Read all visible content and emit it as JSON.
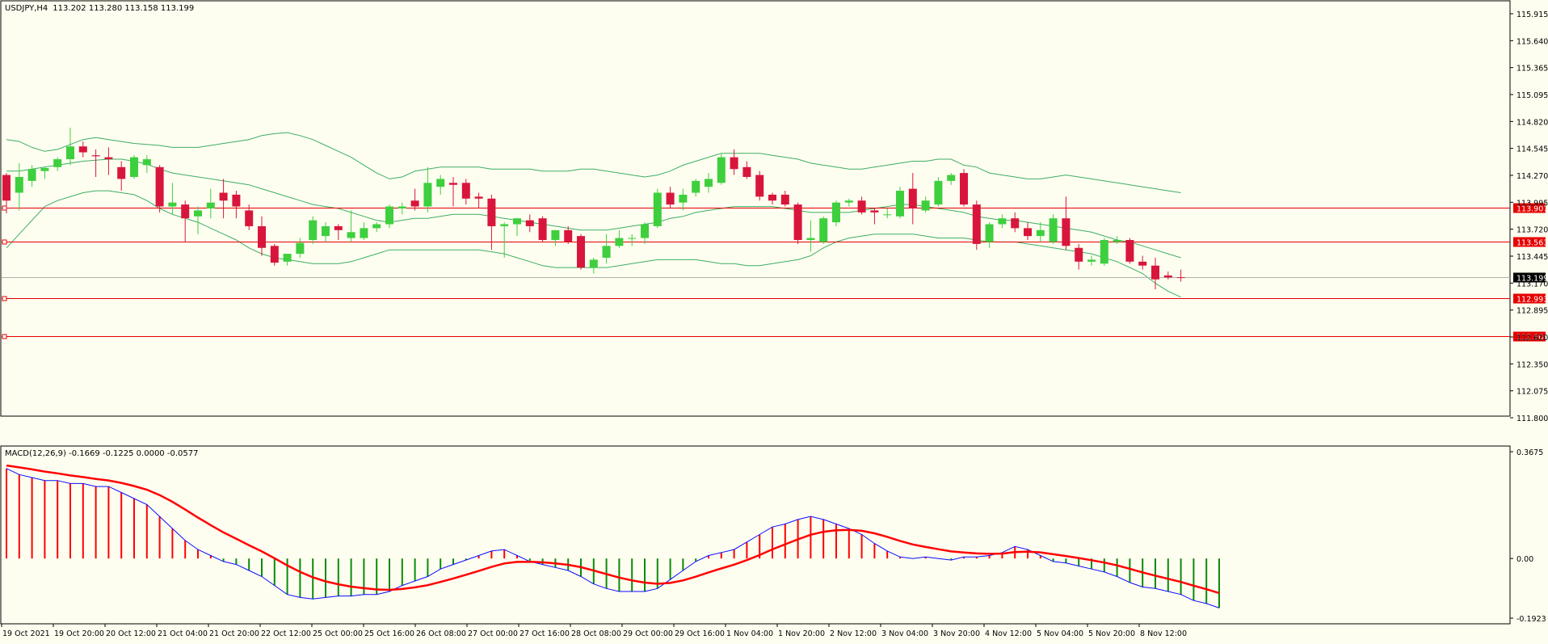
{
  "window": {
    "symbol_label": "USDJPY,H4",
    "ohlc": "113.202 113.280 113.158 113.199"
  },
  "colors": {
    "background": "#fefef0",
    "bull": "#3ecf3e",
    "bear": "#d8163c",
    "band": "#3dae64",
    "hline": "#e60000",
    "macd_main": "#0b0bff",
    "macd_signal": "#ff0000",
    "hist_pos": "#ff0000",
    "hist_neg": "#0a8a0a",
    "bid": "#b0b0b0"
  },
  "price_levels": [
    113.907,
    113.563,
    112.993,
    112.604
  ],
  "current_price": 113.199,
  "chart_data": [
    {
      "type": "candlestick",
      "title": "USDJPY,H4",
      "ylim": [
        111.8,
        116.0
      ],
      "ytick_labels": [
        "115.915",
        "115.640",
        "115.365",
        "115.095",
        "114.820",
        "114.545",
        "114.270",
        "113.995",
        "113.720",
        "113.445",
        "113.170",
        "112.895",
        "112.620",
        "112.350",
        "112.075",
        "111.800"
      ],
      "xtick_labels": [
        "19 Oct 2021",
        "19 Oct 20:00",
        "20 Oct 12:00",
        "21 Oct 04:00",
        "21 Oct 20:00",
        "22 Oct 12:00",
        "25 Oct 00:00",
        "25 Oct 16:00",
        "26 Oct 08:00",
        "27 Oct 00:00",
        "27 Oct 16:00",
        "28 Oct 08:00",
        "29 Oct 00:00",
        "29 Oct 16:00",
        "1 Nov 04:00",
        "1 Nov 20:00",
        "2 Nov 12:00",
        "3 Nov 04:00",
        "3 Nov 20:00",
        "4 Nov 12:00",
        "5 Nov 04:00",
        "5 Nov 20:00",
        "8 Nov 12:00"
      ],
      "candles": [
        {
          "o": 114.24,
          "h": 114.26,
          "c": 113.98,
          "l": 113.85
        },
        {
          "o": 114.06,
          "h": 114.36,
          "c": 114.22,
          "l": 113.88
        },
        {
          "o": 114.18,
          "h": 114.34,
          "c": 114.3,
          "l": 114.12
        },
        {
          "o": 114.28,
          "h": 114.32,
          "c": 114.31,
          "l": 114.2
        },
        {
          "o": 114.32,
          "h": 114.42,
          "c": 114.4,
          "l": 114.28
        },
        {
          "o": 114.4,
          "h": 114.72,
          "c": 114.53,
          "l": 114.34
        },
        {
          "o": 114.53,
          "h": 114.58,
          "c": 114.47,
          "l": 114.42
        },
        {
          "o": 114.44,
          "h": 114.5,
          "c": 114.43,
          "l": 114.22
        },
        {
          "o": 114.42,
          "h": 114.52,
          "c": 114.4,
          "l": 114.24
        },
        {
          "o": 114.32,
          "h": 114.38,
          "c": 114.2,
          "l": 114.08
        },
        {
          "o": 114.22,
          "h": 114.44,
          "c": 114.42,
          "l": 114.2
        },
        {
          "o": 114.34,
          "h": 114.44,
          "c": 114.4,
          "l": 114.26
        },
        {
          "o": 114.32,
          "h": 114.34,
          "c": 113.92,
          "l": 113.86
        },
        {
          "o": 113.92,
          "h": 114.16,
          "c": 113.96,
          "l": 113.84
        },
        {
          "o": 113.94,
          "h": 113.98,
          "c": 113.8,
          "l": 113.56
        },
        {
          "o": 113.82,
          "h": 113.92,
          "c": 113.88,
          "l": 113.64
        },
        {
          "o": 113.9,
          "h": 114.1,
          "c": 113.96,
          "l": 113.8
        },
        {
          "o": 114.06,
          "h": 114.2,
          "c": 113.98,
          "l": 113.8
        },
        {
          "o": 114.04,
          "h": 114.08,
          "c": 113.92,
          "l": 113.8
        },
        {
          "o": 113.88,
          "h": 113.94,
          "c": 113.72,
          "l": 113.68
        },
        {
          "o": 113.72,
          "h": 113.82,
          "c": 113.5,
          "l": 113.42
        },
        {
          "o": 113.52,
          "h": 113.54,
          "c": 113.35,
          "l": 113.32
        },
        {
          "o": 113.36,
          "h": 113.42,
          "c": 113.44,
          "l": 113.32
        },
        {
          "o": 113.44,
          "h": 113.6,
          "c": 113.55,
          "l": 113.4
        },
        {
          "o": 113.58,
          "h": 113.82,
          "c": 113.78,
          "l": 113.54
        },
        {
          "o": 113.62,
          "h": 113.76,
          "c": 113.72,
          "l": 113.56
        },
        {
          "o": 113.72,
          "h": 113.74,
          "c": 113.68,
          "l": 113.58
        },
        {
          "o": 113.6,
          "h": 113.88,
          "c": 113.66,
          "l": 113.56
        },
        {
          "o": 113.6,
          "h": 113.76,
          "c": 113.7,
          "l": 113.58
        },
        {
          "o": 113.7,
          "h": 113.76,
          "c": 113.74,
          "l": 113.66
        },
        {
          "o": 113.74,
          "h": 113.94,
          "c": 113.92,
          "l": 113.7
        },
        {
          "o": 113.9,
          "h": 113.96,
          "c": 113.92,
          "l": 113.84
        },
        {
          "o": 113.98,
          "h": 114.1,
          "c": 113.92,
          "l": 113.88
        },
        {
          "o": 113.92,
          "h": 114.32,
          "c": 114.16,
          "l": 113.86
        },
        {
          "o": 114.12,
          "h": 114.24,
          "c": 114.2,
          "l": 114.04
        },
        {
          "o": 114.16,
          "h": 114.22,
          "c": 114.14,
          "l": 113.92
        },
        {
          "o": 114.16,
          "h": 114.2,
          "c": 114.0,
          "l": 113.94
        },
        {
          "o": 114.02,
          "h": 114.06,
          "c": 114.0,
          "l": 113.9
        },
        {
          "o": 114.0,
          "h": 114.04,
          "c": 113.72,
          "l": 113.48
        },
        {
          "o": 113.72,
          "h": 113.76,
          "c": 113.74,
          "l": 113.4
        },
        {
          "o": 113.74,
          "h": 113.8,
          "c": 113.8,
          "l": 113.62
        },
        {
          "o": 113.78,
          "h": 113.84,
          "c": 113.72,
          "l": 113.66
        },
        {
          "o": 113.8,
          "h": 113.82,
          "c": 113.58,
          "l": 113.56
        },
        {
          "o": 113.58,
          "h": 113.68,
          "c": 113.68,
          "l": 113.52
        },
        {
          "o": 113.68,
          "h": 113.72,
          "c": 113.56,
          "l": 113.54
        },
        {
          "o": 113.62,
          "h": 113.64,
          "c": 113.3,
          "l": 113.28
        },
        {
          "o": 113.3,
          "h": 113.4,
          "c": 113.38,
          "l": 113.24
        },
        {
          "o": 113.4,
          "h": 113.64,
          "c": 113.52,
          "l": 113.34
        },
        {
          "o": 113.52,
          "h": 113.68,
          "c": 113.6,
          "l": 113.5
        },
        {
          "o": 113.6,
          "h": 113.64,
          "c": 113.6,
          "l": 113.52
        },
        {
          "o": 113.6,
          "h": 113.76,
          "c": 113.74,
          "l": 113.54
        },
        {
          "o": 113.72,
          "h": 114.1,
          "c": 114.06,
          "l": 113.7
        },
        {
          "o": 114.06,
          "h": 114.12,
          "c": 113.94,
          "l": 113.9
        },
        {
          "o": 113.96,
          "h": 114.1,
          "c": 114.04,
          "l": 113.88
        },
        {
          "o": 114.06,
          "h": 114.2,
          "c": 114.18,
          "l": 114.02
        },
        {
          "o": 114.12,
          "h": 114.26,
          "c": 114.2,
          "l": 114.06
        },
        {
          "o": 114.16,
          "h": 114.46,
          "c": 114.42,
          "l": 114.14
        },
        {
          "o": 114.42,
          "h": 114.5,
          "c": 114.3,
          "l": 114.24
        },
        {
          "o": 114.32,
          "h": 114.38,
          "c": 114.22,
          "l": 114.2
        },
        {
          "o": 114.24,
          "h": 114.28,
          "c": 114.02,
          "l": 113.98
        },
        {
          "o": 114.04,
          "h": 114.06,
          "c": 113.98,
          "l": 113.94
        },
        {
          "o": 114.04,
          "h": 114.08,
          "c": 113.94,
          "l": 113.92
        },
        {
          "o": 113.94,
          "h": 113.96,
          "c": 113.58,
          "l": 113.54
        },
        {
          "o": 113.58,
          "h": 113.78,
          "c": 113.6,
          "l": 113.46
        },
        {
          "o": 113.56,
          "h": 113.82,
          "c": 113.8,
          "l": 113.54
        },
        {
          "o": 113.76,
          "h": 113.98,
          "c": 113.96,
          "l": 113.72
        },
        {
          "o": 113.96,
          "h": 114.0,
          "c": 113.98,
          "l": 113.92
        },
        {
          "o": 113.98,
          "h": 114.02,
          "c": 113.86,
          "l": 113.84
        },
        {
          "o": 113.88,
          "h": 113.9,
          "c": 113.86,
          "l": 113.74
        },
        {
          "o": 113.84,
          "h": 113.9,
          "c": 113.84,
          "l": 113.8
        },
        {
          "o": 113.82,
          "h": 114.12,
          "c": 114.08,
          "l": 113.8
        },
        {
          "o": 114.1,
          "h": 114.26,
          "c": 113.9,
          "l": 113.74
        },
        {
          "o": 113.88,
          "h": 114.02,
          "c": 113.98,
          "l": 113.86
        },
        {
          "o": 113.94,
          "h": 114.22,
          "c": 114.18,
          "l": 113.92
        },
        {
          "o": 114.18,
          "h": 114.26,
          "c": 114.24,
          "l": 114.14
        },
        {
          "o": 114.26,
          "h": 114.3,
          "c": 113.94,
          "l": 113.92
        },
        {
          "o": 113.94,
          "h": 113.98,
          "c": 113.54,
          "l": 113.48
        },
        {
          "o": 113.56,
          "h": 113.76,
          "c": 113.74,
          "l": 113.5
        },
        {
          "o": 113.74,
          "h": 113.84,
          "c": 113.8,
          "l": 113.7
        },
        {
          "o": 113.8,
          "h": 113.86,
          "c": 113.7,
          "l": 113.66
        },
        {
          "o": 113.7,
          "h": 113.76,
          "c": 113.62,
          "l": 113.58
        },
        {
          "o": 113.62,
          "h": 113.76,
          "c": 113.68,
          "l": 113.56
        },
        {
          "o": 113.56,
          "h": 113.84,
          "c": 113.8,
          "l": 113.54
        },
        {
          "o": 113.8,
          "h": 114.02,
          "c": 113.52,
          "l": 113.48
        },
        {
          "o": 113.5,
          "h": 113.54,
          "c": 113.36,
          "l": 113.28
        },
        {
          "o": 113.36,
          "h": 113.42,
          "c": 113.38,
          "l": 113.32
        },
        {
          "o": 113.34,
          "h": 113.6,
          "c": 113.58,
          "l": 113.32
        },
        {
          "o": 113.56,
          "h": 113.62,
          "c": 113.58,
          "l": 113.54
        },
        {
          "o": 113.58,
          "h": 113.6,
          "c": 113.36,
          "l": 113.34
        },
        {
          "o": 113.36,
          "h": 113.42,
          "c": 113.32,
          "l": 113.28
        },
        {
          "o": 113.32,
          "h": 113.4,
          "c": 113.18,
          "l": 113.08
        },
        {
          "o": 113.22,
          "h": 113.26,
          "c": 113.2,
          "l": 113.18
        },
        {
          "o": 113.202,
          "h": 113.28,
          "c": 113.199,
          "l": 113.158
        }
      ],
      "bands": {
        "upper": [
          114.6,
          114.58,
          114.52,
          114.48,
          114.5,
          114.55,
          114.6,
          114.62,
          114.6,
          114.58,
          114.56,
          114.55,
          114.54,
          114.52,
          114.52,
          114.52,
          114.54,
          114.56,
          114.58,
          114.6,
          114.64,
          114.66,
          114.67,
          114.64,
          114.6,
          114.54,
          114.48,
          114.42,
          114.34,
          114.26,
          114.2,
          114.22,
          114.28,
          114.3,
          114.32,
          114.32,
          114.32,
          114.32,
          114.3,
          114.3,
          114.3,
          114.3,
          114.28,
          114.28,
          114.28,
          114.3,
          114.3,
          114.28,
          114.26,
          114.24,
          114.22,
          114.24,
          114.28,
          114.34,
          114.38,
          114.42,
          114.46,
          114.46,
          114.46,
          114.46,
          114.44,
          114.42,
          114.4,
          114.36,
          114.34,
          114.32,
          114.3,
          114.3,
          114.32,
          114.34,
          114.36,
          114.38,
          114.38,
          114.4,
          114.4,
          114.34,
          114.32,
          114.26,
          114.24,
          114.22,
          114.2,
          114.2,
          114.22,
          114.24,
          114.22,
          114.2,
          114.18,
          114.16,
          114.14,
          114.12,
          114.1,
          114.08,
          114.06
        ],
        "middle": [
          114.28,
          114.28,
          114.3,
          114.32,
          114.34,
          114.36,
          114.38,
          114.39,
          114.4,
          114.4,
          114.38,
          114.35,
          114.3,
          114.26,
          114.24,
          114.22,
          114.2,
          114.18,
          114.16,
          114.14,
          114.1,
          114.06,
          114.02,
          113.98,
          113.94,
          113.92,
          113.9,
          113.86,
          113.82,
          113.78,
          113.76,
          113.78,
          113.8,
          113.8,
          113.82,
          113.84,
          113.84,
          113.84,
          113.82,
          113.8,
          113.78,
          113.76,
          113.74,
          113.72,
          113.7,
          113.68,
          113.68,
          113.68,
          113.7,
          113.72,
          113.74,
          113.76,
          113.8,
          113.82,
          113.86,
          113.88,
          113.9,
          113.92,
          113.92,
          113.92,
          113.92,
          113.9,
          113.88,
          113.86,
          113.86,
          113.86,
          113.86,
          113.88,
          113.9,
          113.92,
          113.94,
          113.94,
          113.92,
          113.9,
          113.88,
          113.86,
          113.82,
          113.8,
          113.78,
          113.78,
          113.76,
          113.74,
          113.72,
          113.7,
          113.68,
          113.66,
          113.62,
          113.58,
          113.56,
          113.52,
          113.48,
          113.44,
          113.4
        ],
        "lower": [
          113.5,
          113.64,
          113.78,
          113.92,
          113.98,
          114.02,
          114.06,
          114.08,
          114.08,
          114.06,
          114.04,
          113.98,
          113.9,
          113.84,
          113.8,
          113.76,
          113.7,
          113.64,
          113.58,
          113.5,
          113.44,
          113.4,
          113.38,
          113.36,
          113.34,
          113.34,
          113.34,
          113.36,
          113.4,
          113.44,
          113.48,
          113.48,
          113.48,
          113.48,
          113.48,
          113.48,
          113.48,
          113.48,
          113.46,
          113.44,
          113.4,
          113.36,
          113.32,
          113.3,
          113.3,
          113.3,
          113.3,
          113.3,
          113.32,
          113.34,
          113.36,
          113.38,
          113.38,
          113.38,
          113.38,
          113.36,
          113.34,
          113.34,
          113.32,
          113.32,
          113.34,
          113.36,
          113.38,
          113.42,
          113.5,
          113.56,
          113.6,
          113.62,
          113.64,
          113.64,
          113.64,
          113.64,
          113.62,
          113.6,
          113.6,
          113.6,
          113.58,
          113.56,
          113.56,
          113.56,
          113.54,
          113.52,
          113.5,
          113.48,
          113.46,
          113.44,
          113.4,
          113.36,
          113.3,
          113.24,
          113.14,
          113.06,
          113.0
        ]
      }
    },
    {
      "type": "macd",
      "title": "MACD(12,26,9) -0.1669 -0.1225 0.0000 -0.0577",
      "ylim": [
        -0.215,
        0.375
      ],
      "ytick_labels": [
        "0.3675",
        "0.00",
        "-0.1923"
      ],
      "macd": [
        0.3,
        0.28,
        0.27,
        0.26,
        0.26,
        0.25,
        0.25,
        0.24,
        0.24,
        0.22,
        0.2,
        0.18,
        0.14,
        0.1,
        0.06,
        0.03,
        0.01,
        -0.01,
        -0.02,
        -0.04,
        -0.06,
        -0.09,
        -0.12,
        -0.13,
        -0.135,
        -0.13,
        -0.125,
        -0.125,
        -0.12,
        -0.12,
        -0.11,
        -0.09,
        -0.075,
        -0.06,
        -0.035,
        -0.02,
        -0.005,
        0.01,
        0.025,
        0.03,
        0.01,
        -0.01,
        -0.02,
        -0.03,
        -0.04,
        -0.06,
        -0.085,
        -0.1,
        -0.11,
        -0.11,
        -0.11,
        -0.1,
        -0.07,
        -0.04,
        -0.01,
        0.01,
        0.02,
        0.03,
        0.055,
        0.08,
        0.105,
        0.115,
        0.13,
        0.14,
        0.13,
        0.115,
        0.1,
        0.08,
        0.05,
        0.025,
        0.005,
        0.0,
        0.005,
        0.0,
        -0.005,
        0.005,
        0.005,
        0.01,
        0.02,
        0.04,
        0.03,
        0.01,
        -0.01,
        -0.015,
        -0.025,
        -0.035,
        -0.045,
        -0.06,
        -0.08,
        -0.095,
        -0.1,
        -0.11,
        -0.12,
        -0.14,
        -0.15,
        -0.165
      ]
    }
  ]
}
